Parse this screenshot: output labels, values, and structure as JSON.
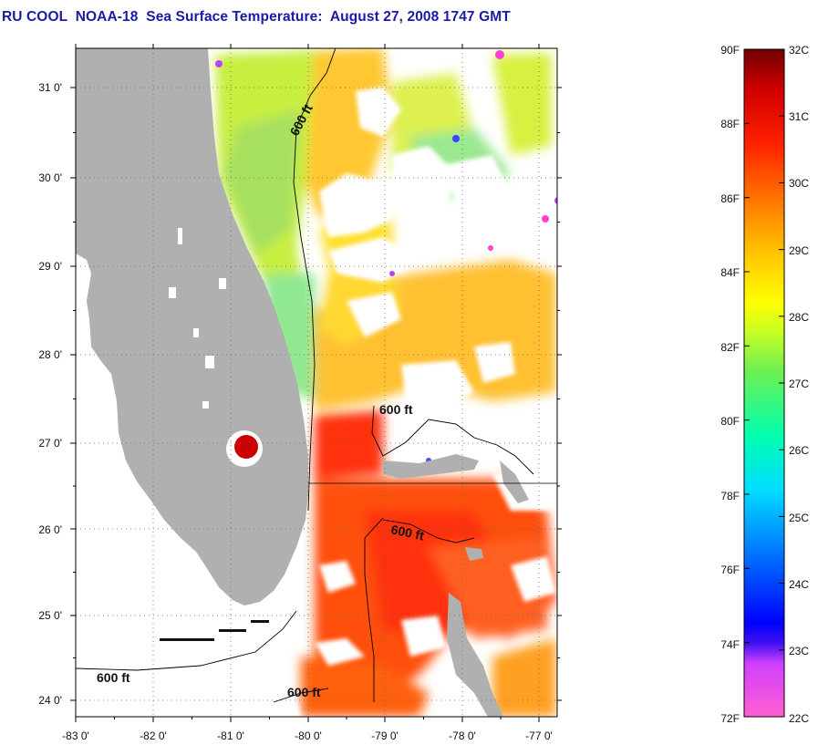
{
  "title": "RU COOL  NOAA-18  Sea Surface Temperature:  August 27, 2008 1747 GMT",
  "map": {
    "lon_range": [
      -83,
      -76.75
    ],
    "lat_range": [
      23.8,
      31.45
    ],
    "x_tick_labels": [
      "-83 0'",
      "-82 0'",
      "-81 0'",
      "-80 0'",
      "-79 0'",
      "-78 0'",
      "-77 0'"
    ],
    "y_tick_labels": [
      "24 0'",
      "25 0'",
      "26 0'",
      "27 0'",
      "28 0'",
      "29 0'",
      "30 0'",
      "31 0'"
    ],
    "grid": "dotted",
    "isobath_labels": [
      "600 ft",
      "600 ft",
      "600 ft",
      "600 ft",
      "600 ft"
    ],
    "colors": {
      "land": "#b0b0b0",
      "cloud_mask": "#ffffff",
      "contour": "#000000"
    }
  },
  "colorbar": {
    "fahrenheit_labels": [
      "90F",
      "88F",
      "86F",
      "84F",
      "82F",
      "80F",
      "78F",
      "76F",
      "74F",
      "72F"
    ],
    "celsius_labels": [
      "32C",
      "31C",
      "30C",
      "29C",
      "28C",
      "27C",
      "26C",
      "25C",
      "24C",
      "23C",
      "22C"
    ],
    "range_c": [
      22,
      32
    ],
    "stops": [
      "#ff5fd0",
      "#d040ff",
      "#0000ff",
      "#0080ff",
      "#00ffff",
      "#00e890",
      "#60e060",
      "#c8ff30",
      "#ffff00",
      "#ffc000",
      "#ff8000",
      "#ff3000",
      "#e00000",
      "#800000"
    ]
  }
}
